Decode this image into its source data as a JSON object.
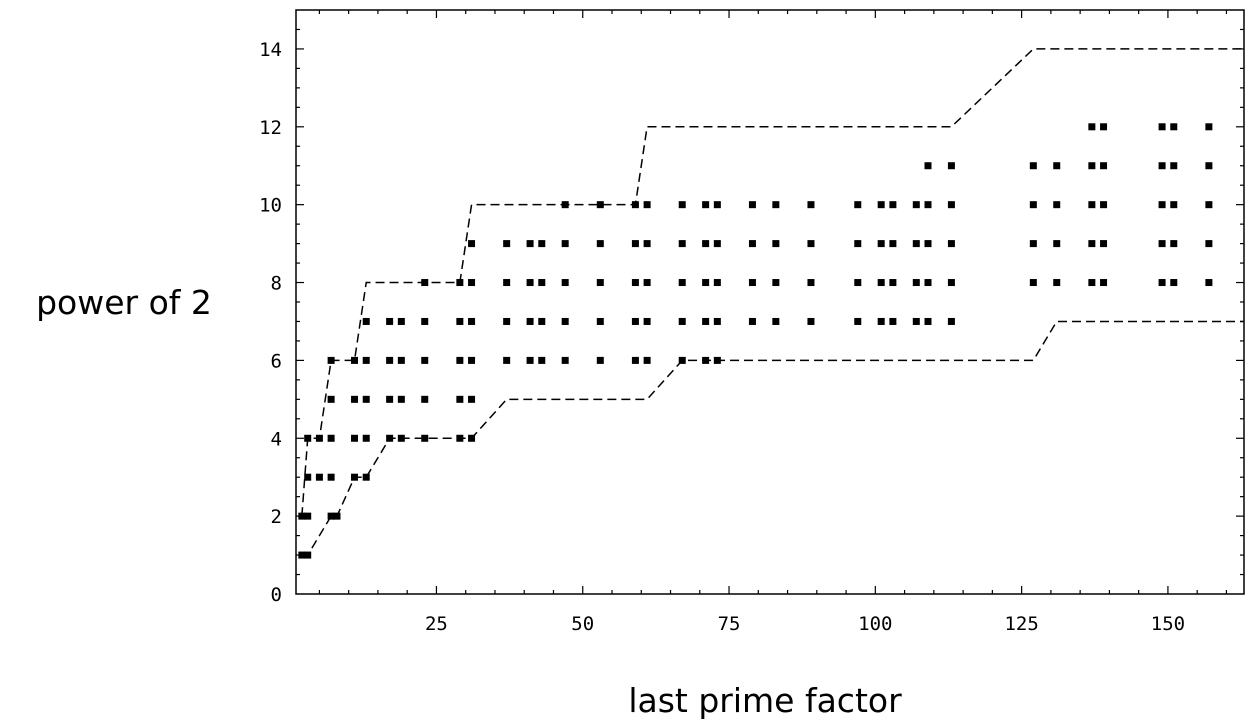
{
  "chart_data": {
    "type": "scatter",
    "title": "",
    "xlabel": "last prime factor",
    "ylabel": "power of 2",
    "xlim": [
      1,
      163
    ],
    "ylim": [
      0,
      15
    ],
    "x_ticks": [
      25,
      50,
      75,
      100,
      125,
      150
    ],
    "y_ticks": [
      0,
      2,
      4,
      6,
      8,
      10,
      12,
      14
    ],
    "grid": false,
    "legend": "none",
    "marker_color": "#000000",
    "series": [
      {
        "points": [
          [
            2,
            1
          ],
          [
            3,
            1
          ],
          [
            2,
            2
          ],
          [
            3,
            2
          ],
          [
            7,
            2
          ],
          [
            8,
            2
          ],
          [
            3,
            3
          ],
          [
            5,
            3
          ],
          [
            7,
            3
          ],
          [
            11,
            3
          ],
          [
            13,
            3
          ],
          [
            3,
            4
          ],
          [
            5,
            4
          ],
          [
            7,
            4
          ],
          [
            11,
            4
          ],
          [
            13,
            4
          ],
          [
            17,
            4
          ],
          [
            19,
            4
          ],
          [
            23,
            4
          ],
          [
            29,
            4
          ],
          [
            31,
            4
          ],
          [
            7,
            5
          ],
          [
            11,
            5
          ],
          [
            13,
            5
          ],
          [
            17,
            5
          ],
          [
            19,
            5
          ],
          [
            23,
            5
          ],
          [
            29,
            5
          ],
          [
            31,
            5
          ],
          [
            7,
            6
          ],
          [
            11,
            6
          ],
          [
            13,
            6
          ],
          [
            17,
            6
          ],
          [
            19,
            6
          ],
          [
            23,
            6
          ],
          [
            29,
            6
          ],
          [
            31,
            6
          ],
          [
            37,
            6
          ],
          [
            41,
            6
          ],
          [
            43,
            6
          ],
          [
            47,
            6
          ],
          [
            53,
            6
          ],
          [
            59,
            6
          ],
          [
            61,
            6
          ],
          [
            67,
            6
          ],
          [
            71,
            6
          ],
          [
            73,
            6
          ],
          [
            13,
            7
          ],
          [
            17,
            7
          ],
          [
            19,
            7
          ],
          [
            23,
            7
          ],
          [
            29,
            7
          ],
          [
            31,
            7
          ],
          [
            37,
            7
          ],
          [
            41,
            7
          ],
          [
            43,
            7
          ],
          [
            47,
            7
          ],
          [
            53,
            7
          ],
          [
            59,
            7
          ],
          [
            61,
            7
          ],
          [
            67,
            7
          ],
          [
            71,
            7
          ],
          [
            73,
            7
          ],
          [
            79,
            7
          ],
          [
            83,
            7
          ],
          [
            89,
            7
          ],
          [
            97,
            7
          ],
          [
            101,
            7
          ],
          [
            103,
            7
          ],
          [
            107,
            7
          ],
          [
            109,
            7
          ],
          [
            113,
            7
          ],
          [
            23,
            8
          ],
          [
            29,
            8
          ],
          [
            31,
            8
          ],
          [
            37,
            8
          ],
          [
            41,
            8
          ],
          [
            43,
            8
          ],
          [
            47,
            8
          ],
          [
            53,
            8
          ],
          [
            59,
            8
          ],
          [
            61,
            8
          ],
          [
            67,
            8
          ],
          [
            71,
            8
          ],
          [
            73,
            8
          ],
          [
            79,
            8
          ],
          [
            83,
            8
          ],
          [
            89,
            8
          ],
          [
            97,
            8
          ],
          [
            101,
            8
          ],
          [
            103,
            8
          ],
          [
            107,
            8
          ],
          [
            109,
            8
          ],
          [
            113,
            8
          ],
          [
            127,
            8
          ],
          [
            131,
            8
          ],
          [
            137,
            8
          ],
          [
            139,
            8
          ],
          [
            149,
            8
          ],
          [
            151,
            8
          ],
          [
            157,
            8
          ],
          [
            31,
            9
          ],
          [
            37,
            9
          ],
          [
            41,
            9
          ],
          [
            43,
            9
          ],
          [
            47,
            9
          ],
          [
            53,
            9
          ],
          [
            59,
            9
          ],
          [
            61,
            9
          ],
          [
            67,
            9
          ],
          [
            71,
            9
          ],
          [
            73,
            9
          ],
          [
            79,
            9
          ],
          [
            83,
            9
          ],
          [
            89,
            9
          ],
          [
            97,
            9
          ],
          [
            101,
            9
          ],
          [
            103,
            9
          ],
          [
            107,
            9
          ],
          [
            109,
            9
          ],
          [
            113,
            9
          ],
          [
            127,
            9
          ],
          [
            131,
            9
          ],
          [
            137,
            9
          ],
          [
            139,
            9
          ],
          [
            149,
            9
          ],
          [
            151,
            9
          ],
          [
            157,
            9
          ],
          [
            47,
            10
          ],
          [
            53,
            10
          ],
          [
            59,
            10
          ],
          [
            61,
            10
          ],
          [
            67,
            10
          ],
          [
            71,
            10
          ],
          [
            73,
            10
          ],
          [
            79,
            10
          ],
          [
            83,
            10
          ],
          [
            89,
            10
          ],
          [
            97,
            10
          ],
          [
            101,
            10
          ],
          [
            103,
            10
          ],
          [
            107,
            10
          ],
          [
            109,
            10
          ],
          [
            113,
            10
          ],
          [
            127,
            10
          ],
          [
            131,
            10
          ],
          [
            137,
            10
          ],
          [
            139,
            10
          ],
          [
            149,
            10
          ],
          [
            151,
            10
          ],
          [
            157,
            10
          ],
          [
            109,
            11
          ],
          [
            113,
            11
          ],
          [
            127,
            11
          ],
          [
            131,
            11
          ],
          [
            137,
            11
          ],
          [
            139,
            11
          ],
          [
            149,
            11
          ],
          [
            151,
            11
          ],
          [
            157,
            11
          ],
          [
            137,
            12
          ],
          [
            139,
            12
          ],
          [
            149,
            12
          ],
          [
            151,
            12
          ],
          [
            157,
            12
          ]
        ]
      }
    ],
    "bounds": [
      {
        "style": "dashed",
        "points": [
          [
            2,
            2
          ],
          [
            3,
            4
          ],
          [
            5,
            4
          ],
          [
            7,
            6
          ],
          [
            11,
            6
          ],
          [
            13,
            8
          ],
          [
            29,
            8
          ],
          [
            31,
            10
          ],
          [
            59,
            10
          ],
          [
            61,
            12
          ],
          [
            113,
            12
          ],
          [
            127,
            14
          ],
          [
            163,
            14
          ]
        ]
      },
      {
        "style": "dashed",
        "points": [
          [
            2,
            1
          ],
          [
            3,
            1
          ],
          [
            7,
            2
          ],
          [
            8,
            2
          ],
          [
            11,
            3
          ],
          [
            13,
            3
          ],
          [
            17,
            4
          ],
          [
            29,
            4
          ],
          [
            31,
            4
          ],
          [
            37,
            5
          ],
          [
            61,
            5
          ],
          [
            67,
            6
          ],
          [
            127,
            6
          ],
          [
            131,
            7
          ],
          [
            163,
            7
          ]
        ]
      }
    ]
  }
}
